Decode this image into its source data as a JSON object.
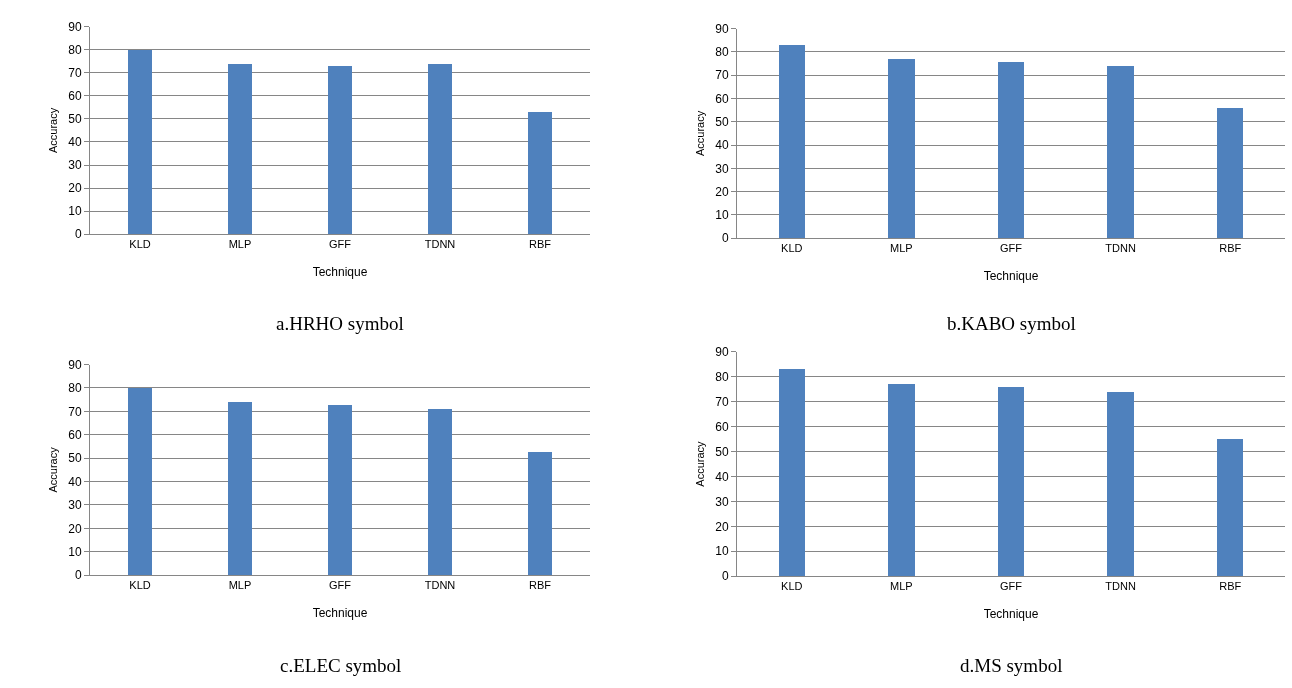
{
  "chart_data": [
    {
      "type": "bar",
      "title": "a.HRHO symbol",
      "xlabel": "Technique",
      "ylabel": "Accuracy",
      "categories": [
        "KLD",
        "MLP",
        "GFF",
        "TDNN",
        "RBF"
      ],
      "values": [
        80,
        74,
        73,
        74,
        53
      ],
      "color": "#4f81bd",
      "ylim": [
        0,
        90
      ],
      "yticks": [
        0,
        10,
        20,
        30,
        40,
        50,
        60,
        70,
        80,
        90
      ],
      "grid": "y"
    },
    {
      "type": "bar",
      "title": "b.KABO symbol",
      "xlabel": "Technique",
      "ylabel": "Accuracy",
      "categories": [
        "KLD",
        "MLP",
        "GFF",
        "TDNN",
        "RBF"
      ],
      "values": [
        83,
        77,
        76,
        74,
        56
      ],
      "color": "#4f81bd",
      "ylim": [
        0,
        90
      ],
      "yticks": [
        0,
        10,
        20,
        30,
        40,
        50,
        60,
        70,
        80,
        90
      ],
      "grid": "y"
    },
    {
      "type": "bar",
      "title": "c.ELEC symbol",
      "xlabel": "Technique",
      "ylabel": "Accuracy",
      "categories": [
        "KLD",
        "MLP",
        "GFF",
        "TDNN",
        "RBF"
      ],
      "values": [
        80,
        74,
        73,
        71,
        53
      ],
      "color": "#4f81bd",
      "ylim": [
        0,
        90
      ],
      "yticks": [
        0,
        10,
        20,
        30,
        40,
        50,
        60,
        70,
        80,
        90
      ],
      "grid": "y"
    },
    {
      "type": "bar",
      "title": "d.MS symbol",
      "xlabel": "Technique",
      "ylabel": "Accuracy",
      "categories": [
        "KLD",
        "MLP",
        "GFF",
        "TDNN",
        "RBF"
      ],
      "values": [
        83,
        77,
        76,
        74,
        55
      ],
      "color": "#4f81bd",
      "ylim": [
        0,
        90
      ],
      "yticks": [
        0,
        10,
        20,
        30,
        40,
        50,
        60,
        70,
        80,
        90
      ],
      "grid": "y"
    }
  ]
}
